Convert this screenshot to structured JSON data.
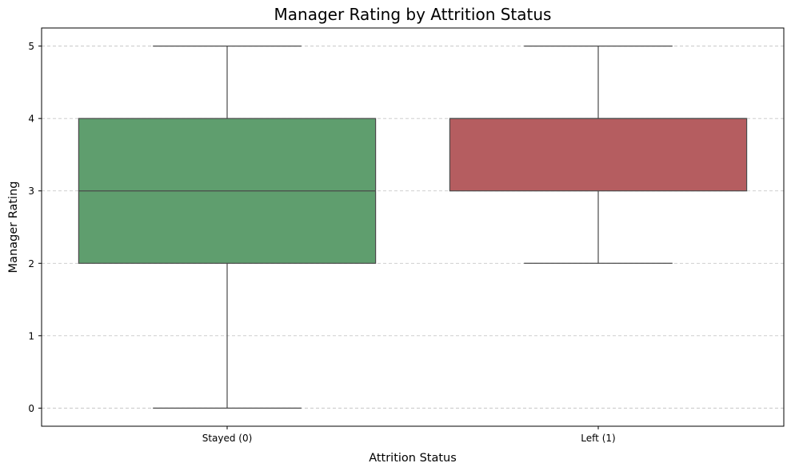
{
  "chart_data": {
    "type": "box",
    "title": "Manager Rating by Attrition Status",
    "xlabel": "Attrition Status",
    "ylabel": "Manager Rating",
    "categories": [
      "Stayed (0)",
      "Left (1)"
    ],
    "boxes": [
      {
        "category": "Stayed (0)",
        "min": 0,
        "q1": 2,
        "median": 3,
        "q3": 4,
        "max": 5,
        "color": "#5f9e6e"
      },
      {
        "category": "Left (1)",
        "min": 2,
        "q1": 3,
        "median": 4,
        "q3": 4,
        "max": 5,
        "color": "#b55d60"
      }
    ],
    "ylim": [
      -0.25,
      5.25
    ],
    "yticks": [
      0,
      1,
      2,
      3,
      4,
      5
    ],
    "grid": {
      "y": true,
      "x": false,
      "style": "dashed"
    },
    "legend": "none",
    "colors": {
      "stayed": "#5f9e6e",
      "left": "#b55d60",
      "line": "#4a4a4a",
      "grid": "#c8c8c8"
    }
  }
}
